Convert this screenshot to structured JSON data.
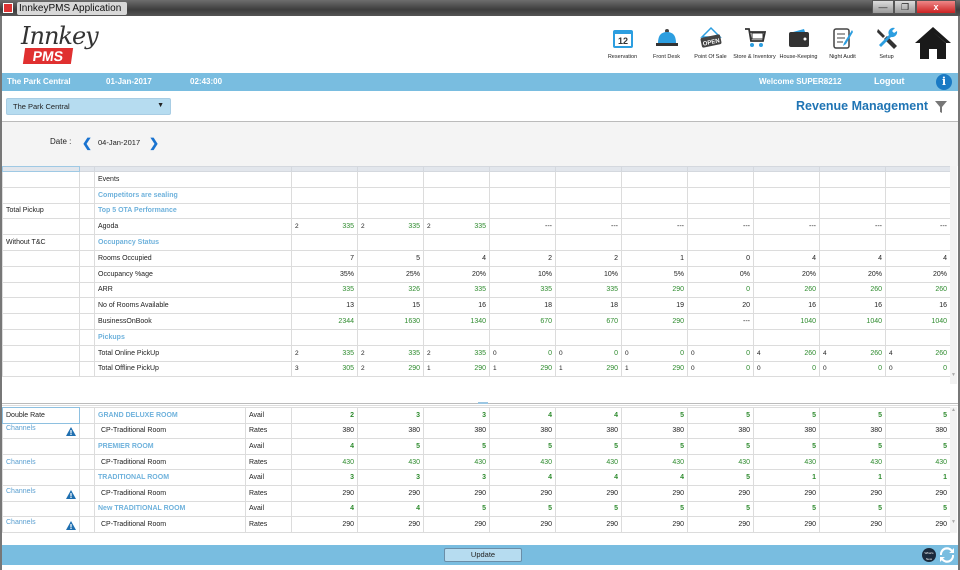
{
  "window": {
    "title": "InnkeyPMS Application",
    "controls": [
      "minimize",
      "restore",
      "close"
    ]
  },
  "header": {
    "logo_script": "Innkey",
    "logo_badge": "PMS",
    "modules": [
      {
        "label": "Reservation",
        "icon": "calendar-icon"
      },
      {
        "label": "Front Desk",
        "icon": "bell-icon"
      },
      {
        "label": "Point Of Sale",
        "icon": "open-sign-icon"
      },
      {
        "label": "Store & Inventory",
        "icon": "cart-icon"
      },
      {
        "label": "House-Keeping",
        "icon": "wallet-icon"
      },
      {
        "label": "Night Audit",
        "icon": "checklist-icon"
      },
      {
        "label": "Setup",
        "icon": "tools-icon"
      }
    ],
    "home_icon": "home-icon"
  },
  "infobar": {
    "hotel": "The Park Central",
    "date": "01-Jan-2017",
    "time": "02:43:00",
    "welcome": "Welcome SUPER8212",
    "logout": "Logout",
    "info": "i"
  },
  "toolbar": {
    "hotel_select": "The Park Central",
    "page_title": "Revenue Management"
  },
  "datebar": {
    "label": "Date :",
    "value": "04-Jan-2017"
  },
  "top_table": {
    "rows": [
      {
        "side": "",
        "label": "Events",
        "type": "section-plain",
        "cells": []
      },
      {
        "side": "",
        "label": "Competitors are sealing",
        "type": "section",
        "cells": []
      },
      {
        "side": "Total Pickup",
        "label": "Top 5 OTA Performance",
        "type": "section",
        "cells": []
      },
      {
        "side": "",
        "label": "Agoda",
        "type": "split",
        "cells": [
          [
            "2",
            "335"
          ],
          [
            "2",
            "335"
          ],
          [
            "2",
            "335"
          ],
          [
            "",
            "---"
          ],
          [
            "",
            "---"
          ],
          [
            "",
            "---"
          ],
          [
            "",
            "---"
          ],
          [
            "",
            "---"
          ],
          [
            "",
            "---"
          ],
          [
            "",
            "---"
          ]
        ]
      },
      {
        "side": "Without T&C",
        "label": "Occupancy Status",
        "type": "section",
        "cells": []
      },
      {
        "side": "",
        "label": "Rooms Occupied",
        "type": "num",
        "cells": [
          "7",
          "5",
          "4",
          "2",
          "2",
          "1",
          "0",
          "4",
          "4",
          "4"
        ]
      },
      {
        "side": "",
        "label": "Occupancy %age",
        "type": "num",
        "cells": [
          "35%",
          "25%",
          "20%",
          "10%",
          "10%",
          "5%",
          "0%",
          "20%",
          "20%",
          "20%"
        ]
      },
      {
        "side": "",
        "label": "ARR",
        "type": "green",
        "cells": [
          "335",
          "326",
          "335",
          "335",
          "335",
          "290",
          "0",
          "260",
          "260",
          "260"
        ]
      },
      {
        "side": "",
        "label": "No of Rooms Available",
        "type": "num",
        "cells": [
          "13",
          "15",
          "16",
          "18",
          "18",
          "19",
          "20",
          "16",
          "16",
          "16"
        ]
      },
      {
        "side": "",
        "label": "BusinessOnBook",
        "type": "green",
        "cells": [
          "2344",
          "1630",
          "1340",
          "670",
          "670",
          "290",
          "---",
          "1040",
          "1040",
          "1040"
        ]
      },
      {
        "side": "",
        "label": "Pickups",
        "type": "section",
        "cells": []
      },
      {
        "side": "",
        "label": "Total Online PickUp",
        "type": "split",
        "cells": [
          [
            "2",
            "335"
          ],
          [
            "2",
            "335"
          ],
          [
            "2",
            "335"
          ],
          [
            "0",
            "0"
          ],
          [
            "0",
            "0"
          ],
          [
            "0",
            "0"
          ],
          [
            "0",
            "0"
          ],
          [
            "4",
            "260"
          ],
          [
            "4",
            "260"
          ],
          [
            "4",
            "260"
          ]
        ]
      },
      {
        "side": "",
        "label": "Total Offline PickUp",
        "type": "split-small",
        "cells": [
          [
            "3",
            "305"
          ],
          [
            "2",
            "290"
          ],
          [
            "1",
            "290"
          ],
          [
            "1",
            "290"
          ],
          [
            "1",
            "290"
          ],
          [
            "1",
            "290"
          ],
          [
            "0",
            "0"
          ],
          [
            "0",
            "0"
          ],
          [
            "0",
            "0"
          ],
          [
            "0",
            "0"
          ]
        ]
      }
    ]
  },
  "bottom_table": {
    "rows": [
      {
        "side": "Double Rate",
        "warn": false,
        "room": "GRAND DELUXE ROOM",
        "kind": "Avail",
        "cells": [
          "2",
          "3",
          "3",
          "4",
          "4",
          "5",
          "5",
          "5",
          "5",
          "5"
        ]
      },
      {
        "side": "Channels",
        "warn": true,
        "room": "CP-Traditional Room",
        "kind": "Rates",
        "cells": [
          "380",
          "380",
          "380",
          "380",
          "380",
          "380",
          "380",
          "380",
          "380",
          "380"
        ]
      },
      {
        "side": "",
        "warn": false,
        "room": "PREMIER ROOM",
        "kind": "Avail",
        "cells": [
          "4",
          "5",
          "5",
          "5",
          "5",
          "5",
          "5",
          "5",
          "5",
          "5"
        ]
      },
      {
        "side": "Channels",
        "warn": false,
        "room": "CP-Traditional Room",
        "kind": "Rates",
        "cells": [
          "430",
          "430",
          "430",
          "430",
          "430",
          "430",
          "430",
          "430",
          "430",
          "430"
        ]
      },
      {
        "side": "",
        "warn": false,
        "room": "TRADITIONAL ROOM",
        "kind": "Avail",
        "cells": [
          "3",
          "3",
          "3",
          "4",
          "4",
          "4",
          "5",
          "1",
          "1",
          "1"
        ]
      },
      {
        "side": "Channels",
        "warn": true,
        "room": "CP-Traditional Room",
        "kind": "Rates",
        "cells": [
          "290",
          "290",
          "290",
          "290",
          "290",
          "290",
          "290",
          "290",
          "290",
          "290"
        ]
      },
      {
        "side": "",
        "warn": false,
        "room": "New TRADITIONAL ROOM",
        "kind": "Avail",
        "cells": [
          "4",
          "4",
          "5",
          "5",
          "5",
          "5",
          "5",
          "5",
          "5",
          "5"
        ]
      },
      {
        "side": "Channels",
        "warn": true,
        "room": "CP-Traditional Room",
        "kind": "Rates",
        "cells": [
          "290",
          "290",
          "290",
          "290",
          "290",
          "290",
          "290",
          "290",
          "290",
          "290"
        ]
      }
    ]
  },
  "footer": {
    "update_label": "Update",
    "whats_new": "What's New"
  },
  "colors": {
    "accent_blue": "#79bde0",
    "title_blue": "#1f74b4",
    "section_blue": "#6fb2dc",
    "value_green": "#2e8b2e",
    "logo_red": "#e03030"
  }
}
